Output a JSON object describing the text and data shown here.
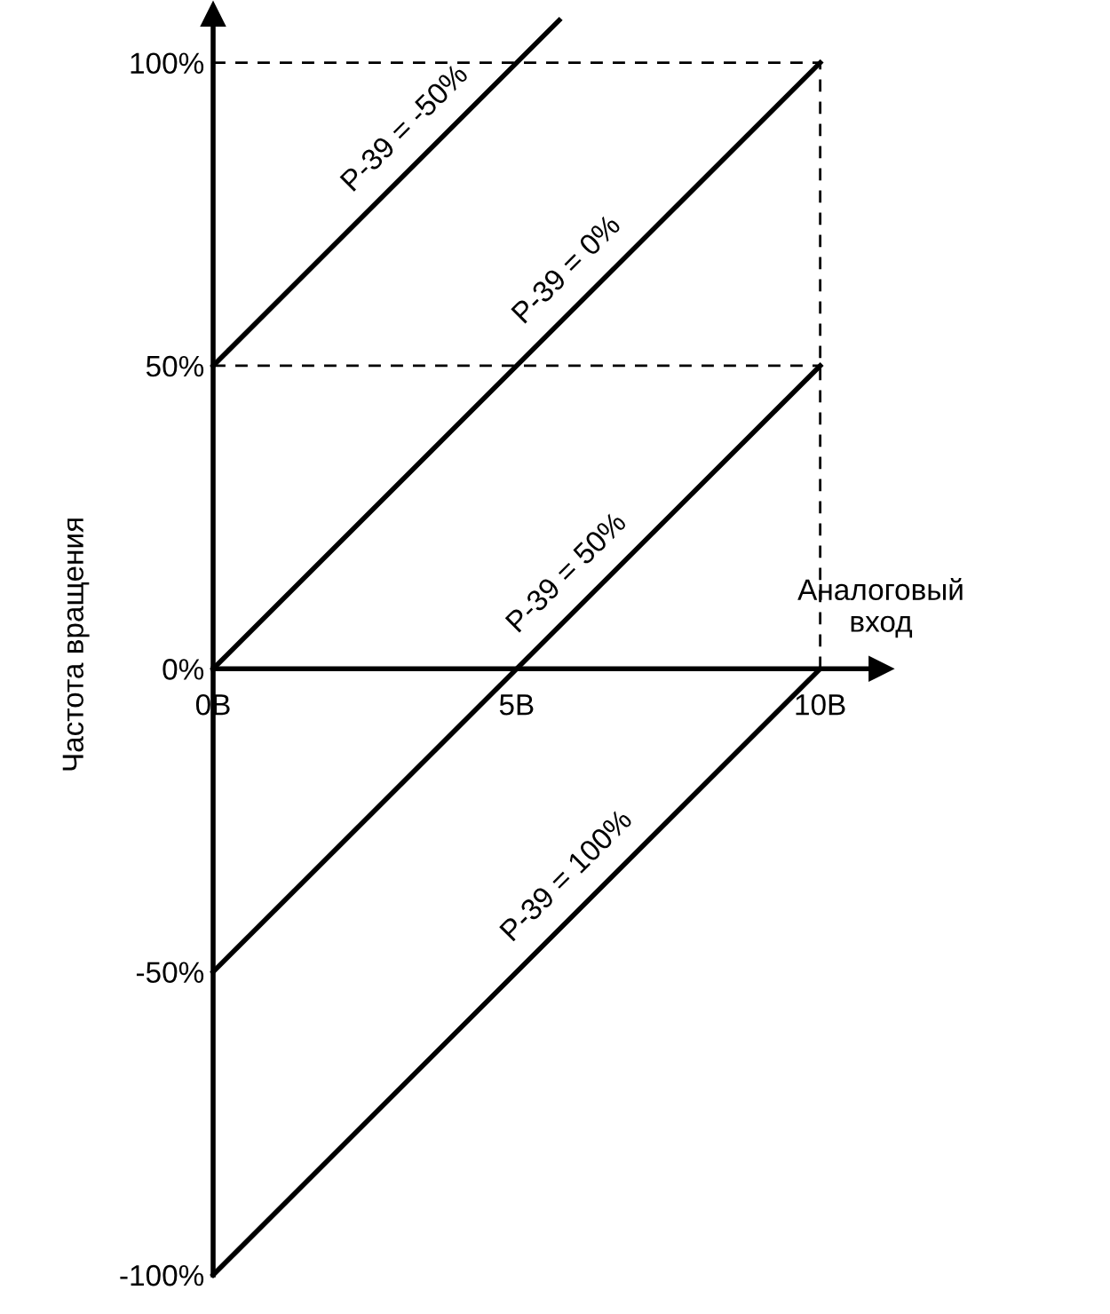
{
  "chart_data": {
    "type": "line",
    "xlabel": "Аналоговый\nвход",
    "ylabel": "Частота вращения",
    "xlim": [
      0,
      11
    ],
    "ylim": [
      -100,
      108
    ],
    "xticks": [
      {
        "value": 0,
        "label": "0В"
      },
      {
        "value": 5,
        "label": "5В"
      },
      {
        "value": 10,
        "label": "10В"
      }
    ],
    "yticks": [
      {
        "value": -100,
        "label": "-100%"
      },
      {
        "value": -50,
        "label": "-50%"
      },
      {
        "value": 0,
        "label": "0%"
      },
      {
        "value": 50,
        "label": "50%"
      },
      {
        "value": 100,
        "label": "100%"
      }
    ],
    "grid": false,
    "legend": false,
    "marker": "none",
    "series": [
      {
        "name": "P-39 = -50%",
        "color": "#000000",
        "x": [
          0,
          5.7
        ],
        "values": [
          50,
          107
        ],
        "line_style": "solid"
      },
      {
        "name": "P-39 = 0%",
        "color": "#000000",
        "x": [
          0,
          10
        ],
        "values": [
          0,
          100
        ],
        "line_style": "solid"
      },
      {
        "name": "P-39 = 50%",
        "color": "#000000",
        "x": [
          0,
          10
        ],
        "values": [
          -50,
          50
        ],
        "line_style": "solid"
      },
      {
        "name": "P-39 = 100%",
        "color": "#000000",
        "x": [
          0,
          10
        ],
        "values": [
          -100,
          0
        ],
        "line_style": "solid"
      },
      {
        "color": "#000000",
        "x": [
          0,
          10
        ],
        "values": [
          100,
          100
        ],
        "line_style": "dashed"
      },
      {
        "color": "#000000",
        "x": [
          0,
          10
        ],
        "values": [
          50,
          50
        ],
        "line_style": "dashed"
      },
      {
        "color": "#000000",
        "x": [
          10,
          10
        ],
        "values": [
          0,
          100
        ],
        "line_style": "dashed"
      }
    ]
  }
}
